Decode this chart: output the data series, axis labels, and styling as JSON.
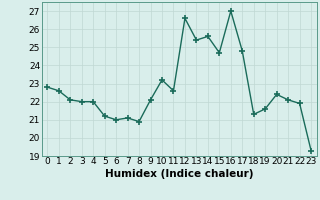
{
  "x": [
    0,
    1,
    2,
    3,
    4,
    5,
    6,
    7,
    8,
    9,
    10,
    11,
    12,
    13,
    14,
    15,
    16,
    17,
    18,
    19,
    20,
    21,
    22,
    23
  ],
  "y": [
    22.8,
    22.6,
    22.1,
    22.0,
    22.0,
    21.2,
    21.0,
    21.1,
    20.9,
    22.1,
    23.2,
    22.6,
    26.6,
    25.4,
    25.6,
    24.7,
    27.0,
    24.8,
    21.3,
    21.6,
    22.4,
    22.1,
    21.9,
    19.3
  ],
  "line_color": "#1a6b5a",
  "marker": "+",
  "markersize": 4,
  "linewidth": 1.0,
  "xlabel": "Humidex (Indice chaleur)",
  "ylim": [
    19,
    27.5
  ],
  "yticks": [
    19,
    20,
    21,
    22,
    23,
    24,
    25,
    26,
    27
  ],
  "xticks": [
    0,
    1,
    2,
    3,
    4,
    5,
    6,
    7,
    8,
    9,
    10,
    11,
    12,
    13,
    14,
    15,
    16,
    17,
    18,
    19,
    20,
    21,
    22,
    23
  ],
  "bg_color": "#d9eeeb",
  "grid_color": "#c0d8d4",
  "xlabel_fontsize": 7.5,
  "tick_fontsize": 6.5
}
